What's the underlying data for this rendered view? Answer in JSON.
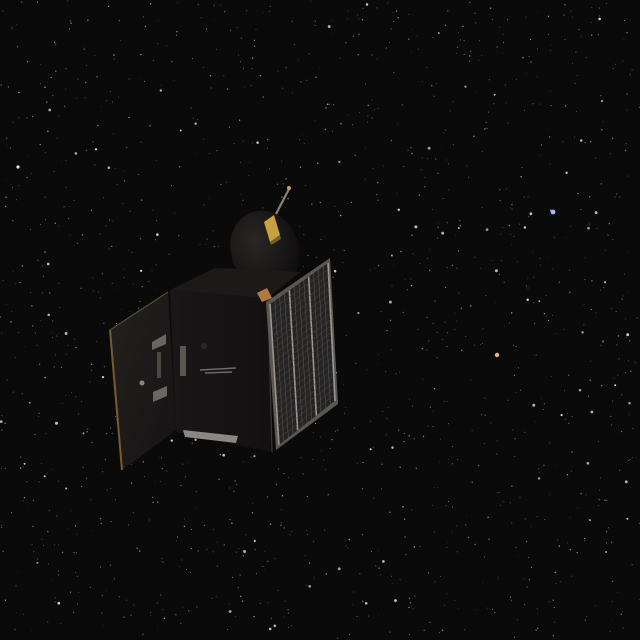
{
  "scene": {
    "colors": {
      "space": "#0b0a0a",
      "star_white": "#e8e6e2",
      "star_blue": "#a8b4ff",
      "star_orange": "#ffb070",
      "body_dark": "#141212",
      "body_mid": "#1e1b1a",
      "panel_frame": "#5a5652",
      "panel_cell": "#252424",
      "panel_line": "#8a8784",
      "gold": "#c8a040",
      "copper_edge": "#7a5a30"
    },
    "objects": [
      "spacecraft",
      "solar-array",
      "high-gain-antenna",
      "side-panel",
      "star-field"
    ]
  }
}
